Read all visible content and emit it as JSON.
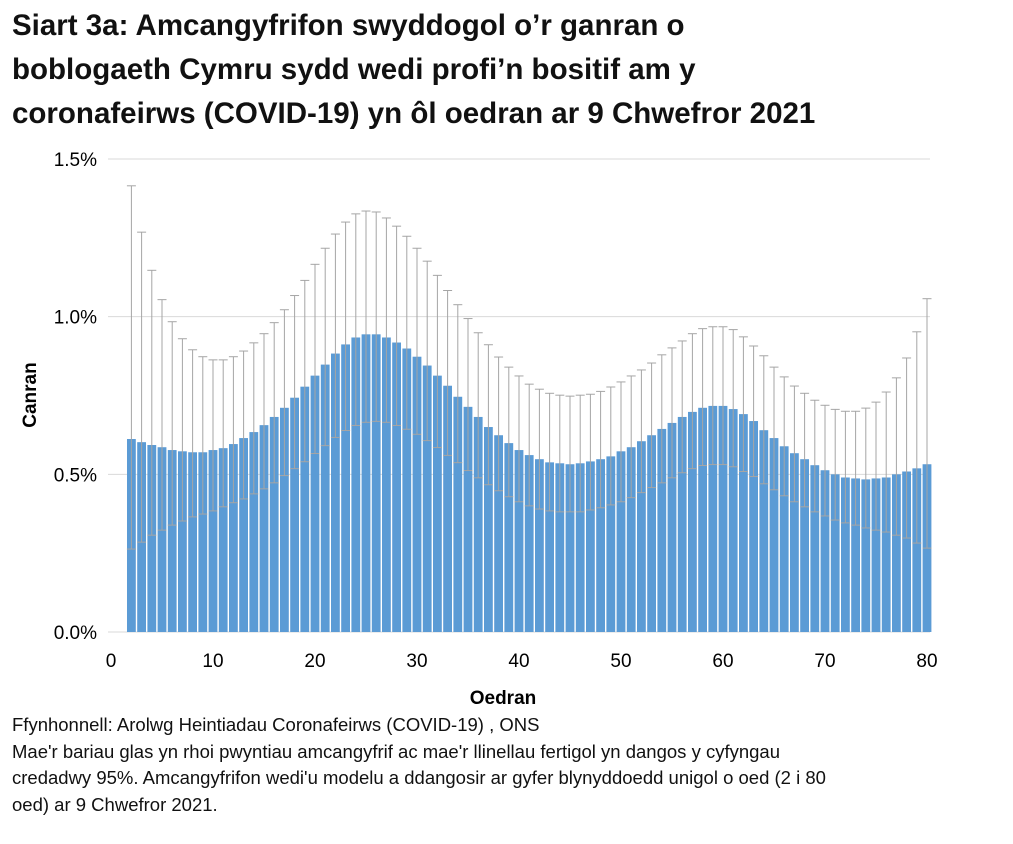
{
  "title_lines": [
    "Siart 3a: Amcangyfrifon swyddogol o’r ganran o",
    "boblogaeth Cymru sydd wedi profi’n bositif am y",
    "coronafeirws (COVID-19) yn ôl oedran ar 9 Chwefror 2021"
  ],
  "notes": [
    "Ffynhonnell: Arolwg Heintiadau Coronafeirws (COVID-19) , ONS",
    "Mae'r bariau glas yn rhoi pwyntiau amcangyfrif ac mae'r llinellau fertigol yn dangos y cyfyngau",
    "credadwy 95%. Amcangyfrifon wedi'u modelu a ddangosir ar gyfer blynyddoedd unigol o oed (2 i 80",
    "oed) ar 9 Chwefror 2021."
  ],
  "chart_data": {
    "type": "bar",
    "xlabel": "Oedran",
    "ylabel": "Canran",
    "xlim": [
      0,
      80
    ],
    "ylim": [
      0,
      1.5
    ],
    "x_ticks": [
      0,
      10,
      20,
      30,
      40,
      50,
      60,
      70,
      80
    ],
    "y_ticks": [
      "0.0%",
      "0.5%",
      "1.0%",
      "1.5%"
    ],
    "y_tick_values": [
      0,
      0.5,
      1.0,
      1.5
    ],
    "grid": true,
    "legend": "none",
    "colors": {
      "bar": "#5b9bd5",
      "error_bar": "#a5a5a5",
      "grid": "#d9d9d9"
    },
    "ages": [
      2,
      3,
      4,
      5,
      6,
      7,
      8,
      9,
      10,
      11,
      12,
      13,
      14,
      15,
      16,
      17,
      18,
      19,
      20,
      21,
      22,
      23,
      24,
      25,
      26,
      27,
      28,
      29,
      30,
      31,
      32,
      33,
      34,
      35,
      36,
      37,
      38,
      39,
      40,
      41,
      42,
      43,
      44,
      45,
      46,
      47,
      48,
      49,
      50,
      51,
      52,
      53,
      54,
      55,
      56,
      57,
      58,
      59,
      60,
      61,
      62,
      63,
      64,
      65,
      66,
      67,
      68,
      69,
      70,
      71,
      72,
      73,
      74,
      75,
      76,
      77,
      78,
      79,
      80
    ],
    "estimate": [
      0.612,
      0.602,
      0.593,
      0.586,
      0.577,
      0.573,
      0.57,
      0.57,
      0.577,
      0.583,
      0.596,
      0.615,
      0.634,
      0.656,
      0.682,
      0.711,
      0.743,
      0.778,
      0.813,
      0.848,
      0.883,
      0.912,
      0.934,
      0.944,
      0.944,
      0.934,
      0.918,
      0.899,
      0.873,
      0.845,
      0.813,
      0.781,
      0.746,
      0.714,
      0.682,
      0.65,
      0.624,
      0.599,
      0.577,
      0.561,
      0.548,
      0.538,
      0.535,
      0.532,
      0.535,
      0.541,
      0.548,
      0.557,
      0.573,
      0.586,
      0.605,
      0.624,
      0.644,
      0.663,
      0.682,
      0.698,
      0.711,
      0.717,
      0.717,
      0.707,
      0.691,
      0.669,
      0.64,
      0.615,
      0.589,
      0.567,
      0.548,
      0.529,
      0.513,
      0.5,
      0.49,
      0.487,
      0.484,
      0.487,
      0.49,
      0.5,
      0.509,
      0.519,
      0.532
    ],
    "upper": [
      1.415,
      1.268,
      1.147,
      1.054,
      0.984,
      0.93,
      0.895,
      0.873,
      0.863,
      0.863,
      0.873,
      0.891,
      0.917,
      0.946,
      0.981,
      1.022,
      1.067,
      1.115,
      1.166,
      1.217,
      1.262,
      1.3,
      1.326,
      1.335,
      1.332,
      1.313,
      1.287,
      1.255,
      1.217,
      1.176,
      1.131,
      1.083,
      1.038,
      0.994,
      0.949,
      0.911,
      0.872,
      0.84,
      0.812,
      0.786,
      0.77,
      0.757,
      0.751,
      0.748,
      0.751,
      0.754,
      0.763,
      0.777,
      0.793,
      0.812,
      0.831,
      0.853,
      0.879,
      0.901,
      0.923,
      0.946,
      0.962,
      0.968,
      0.968,
      0.959,
      0.936,
      0.907,
      0.876,
      0.84,
      0.809,
      0.78,
      0.757,
      0.735,
      0.719,
      0.706,
      0.7,
      0.7,
      0.71,
      0.729,
      0.761,
      0.806,
      0.869,
      0.952,
      1.057
    ],
    "lower": [
      0.263,
      0.285,
      0.307,
      0.323,
      0.339,
      0.352,
      0.365,
      0.374,
      0.384,
      0.397,
      0.41,
      0.422,
      0.438,
      0.454,
      0.473,
      0.496,
      0.518,
      0.54,
      0.566,
      0.591,
      0.617,
      0.639,
      0.655,
      0.665,
      0.668,
      0.665,
      0.655,
      0.643,
      0.627,
      0.607,
      0.585,
      0.56,
      0.537,
      0.512,
      0.489,
      0.467,
      0.448,
      0.429,
      0.413,
      0.4,
      0.39,
      0.384,
      0.381,
      0.381,
      0.381,
      0.387,
      0.394,
      0.403,
      0.413,
      0.426,
      0.442,
      0.458,
      0.473,
      0.489,
      0.505,
      0.518,
      0.528,
      0.531,
      0.531,
      0.524,
      0.509,
      0.493,
      0.47,
      0.451,
      0.432,
      0.413,
      0.397,
      0.381,
      0.368,
      0.355,
      0.346,
      0.339,
      0.33,
      0.323,
      0.317,
      0.307,
      0.298,
      0.282,
      0.266
    ]
  }
}
